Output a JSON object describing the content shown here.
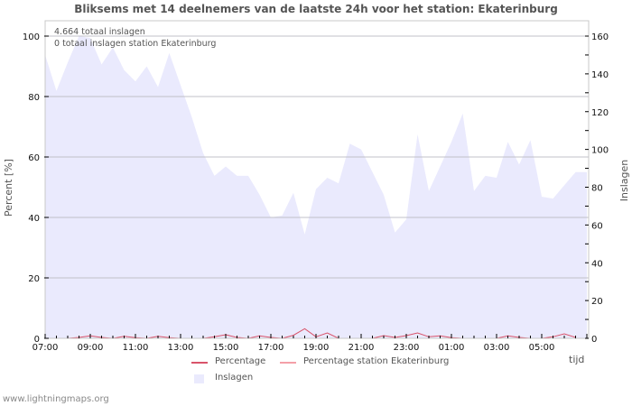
{
  "title": "Bliksems met 14 deelnemers van de laatste 24h voor het station: Ekaterinburg",
  "annotations": [
    "4.664 totaal inslagen",
    "0 totaal inslagen station Ekaterinburg"
  ],
  "axes": {
    "left_label": "Percent   [%]",
    "right_label": "Inslagen",
    "x_label": "tijd",
    "left_ticks": [
      "0",
      "20",
      "40",
      "60",
      "80",
      "100"
    ],
    "right_ticks": [
      "0",
      "20",
      "40",
      "60",
      "80",
      "100",
      "120",
      "140",
      "160"
    ],
    "x_ticks": [
      "07:00",
      "09:00",
      "11:00",
      "13:00",
      "15:00",
      "17:00",
      "19:00",
      "21:00",
      "23:00",
      "01:00",
      "03:00",
      "05:00"
    ]
  },
  "legend": {
    "percentage": "Percentage",
    "percentage_station": "Percentage station Ekaterinburg",
    "inslagen": "Inslagen"
  },
  "colors": {
    "area": "#eaeafd",
    "percentage_line": "#d9536a",
    "percentage_station_line": "#f4a0a8",
    "grid": "#c0c0c8",
    "axis": "#c8c8c8"
  },
  "footer": "www.lightningmaps.org",
  "chart_data": {
    "type": "area",
    "title": "Bliksems met 14 deelnemers van de laatste 24h voor het station: Ekaterinburg",
    "xlabel": "tijd",
    "ylabel": "Percent [%]",
    "y2label": "Inslagen",
    "ylim": [
      0,
      100
    ],
    "y2lim": [
      0,
      160
    ],
    "grid": true,
    "legend_position": "bottom",
    "x": [
      "07:00",
      "07:30",
      "08:00",
      "08:30",
      "09:00",
      "09:30",
      "10:00",
      "10:30",
      "11:00",
      "11:30",
      "12:00",
      "12:30",
      "13:00",
      "13:30",
      "14:00",
      "14:30",
      "15:00",
      "15:30",
      "16:00",
      "16:30",
      "17:00",
      "17:30",
      "18:00",
      "18:30",
      "19:00",
      "19:30",
      "20:00",
      "20:30",
      "21:00",
      "21:30",
      "22:00",
      "22:30",
      "23:00",
      "23:30",
      "00:00",
      "00:30",
      "01:00",
      "01:30",
      "02:00",
      "02:30",
      "03:00",
      "03:30",
      "04:00",
      "04:30",
      "05:00",
      "05:30",
      "06:00",
      "06:30"
    ],
    "series": [
      {
        "name": "Inslagen",
        "axis": "right",
        "values": [
          150,
          131,
          146,
          160,
          159,
          145,
          154,
          142,
          136,
          144,
          133,
          151,
          134,
          117,
          98,
          86,
          91,
          86,
          86,
          76,
          64,
          65,
          77,
          55,
          79,
          85,
          82,
          103,
          100,
          88,
          76,
          56,
          63,
          108,
          78,
          91,
          104,
          119,
          78,
          86,
          85,
          104,
          92,
          105,
          75,
          74,
          81,
          88
        ]
      },
      {
        "name": "Percentage",
        "axis": "left",
        "values": [
          0,
          0,
          0,
          0.3,
          0.8,
          0.3,
          0,
          0.7,
          0.2,
          0,
          0.7,
          0.2,
          0,
          0,
          0,
          0.5,
          1.2,
          0.3,
          0,
          0.8,
          0.3,
          0,
          1,
          3.2,
          0.5,
          1.8,
          0,
          0,
          0,
          0,
          0.9,
          0.3,
          0.9,
          1.8,
          0.5,
          0.8,
          0.2,
          0,
          0,
          0,
          0,
          0.8,
          0.3,
          0,
          0,
          0.5,
          1.5,
          0.3
        ]
      },
      {
        "name": "Percentage station Ekaterinburg",
        "axis": "left",
        "values": [
          0,
          0,
          0,
          0,
          0,
          0,
          0,
          0,
          0,
          0,
          0,
          0,
          0,
          0,
          0,
          0,
          0,
          0,
          0,
          0,
          0,
          0,
          0,
          0,
          0,
          0,
          0,
          0,
          0,
          0,
          0,
          0,
          0,
          0,
          0,
          0,
          0,
          0,
          0,
          0,
          0,
          0,
          0,
          0,
          0,
          0,
          0,
          0
        ]
      }
    ],
    "totals": {
      "total_strikes": "4.664",
      "station_strikes": "0"
    }
  }
}
